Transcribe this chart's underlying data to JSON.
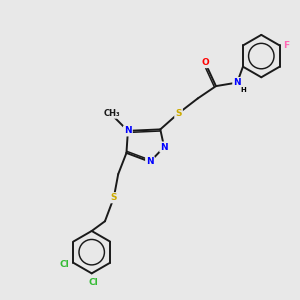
{
  "background_color": "#e8e8e8",
  "bond_color": "#1a1a1a",
  "atom_colors": {
    "N": "#0000ff",
    "O": "#ff0000",
    "S": "#ccaa00",
    "F": "#ff69b4",
    "Cl": "#33bb33",
    "H": "#000000",
    "C": "#1a1a1a"
  },
  "font_size_atom": 6.5,
  "fig_size": [
    3.0,
    3.0
  ],
  "dpi": 100,
  "xlim": [
    0,
    10
  ],
  "ylim": [
    0,
    10
  ]
}
